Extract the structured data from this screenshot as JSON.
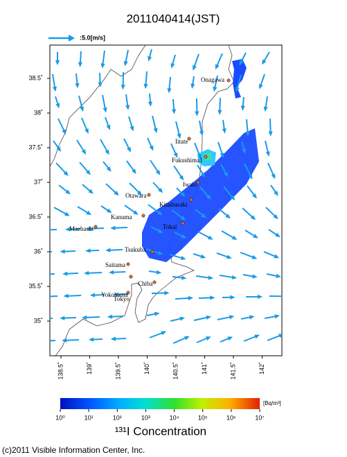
{
  "title": "2011040414(JST)",
  "scale_label": ":5.0[m/s]",
  "lat_ticks": [
    "38.5˚",
    "38˚",
    "37.5˚",
    "37˚",
    "36.5˚",
    "36˚",
    "35.5˚",
    "35˚"
  ],
  "lon_ticks": [
    "138.5˚",
    "139˚",
    "139.5˚",
    "140˚",
    "140.5˚",
    "141˚",
    "141.5˚",
    "142˚"
  ],
  "cities": [
    "Onagawa",
    "Iitate",
    "Fukushima1",
    "Iwaki",
    "Otawara",
    "Kitaibaraki",
    "Kanuma",
    "Tokai",
    "Maebashi",
    "Tsukuba",
    "Saitama",
    "Tokyo",
    "Chiba",
    "Yokohama"
  ],
  "colorbar": {
    "unit": "[Bq/m³]",
    "ticks": [
      "10⁰",
      "10¹",
      "10²",
      "10³",
      "10⁴",
      "10⁵",
      "10⁶",
      "10⁷"
    ]
  },
  "caption": "¹³¹I Concentration",
  "copyright": "(c)2011 Visible Information Center, Inc."
}
